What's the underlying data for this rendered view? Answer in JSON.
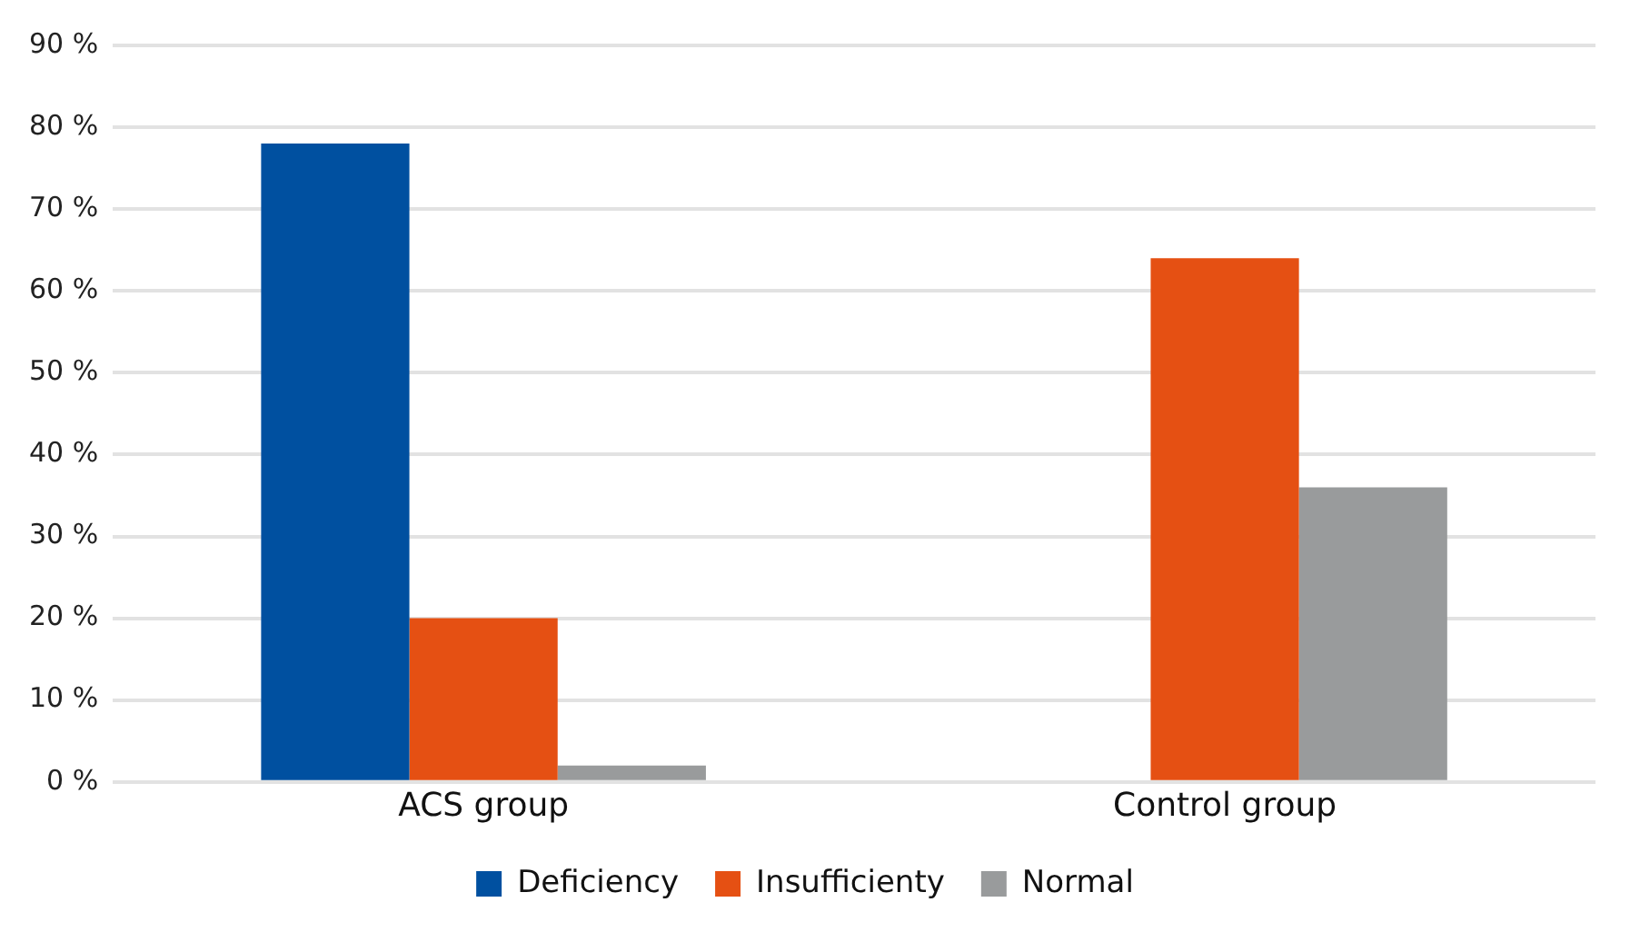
{
  "chart_data": {
    "type": "bar",
    "categories": [
      "ACS group",
      "Control group"
    ],
    "series": [
      {
        "name": "Deficiency",
        "color": "#0050a0",
        "values": [
          78,
          0
        ]
      },
      {
        "name": "Insufficienty",
        "color": "#e55013",
        "values": [
          20,
          64
        ]
      },
      {
        "name": "Normal",
        "color": "#999b9c",
        "values": [
          2,
          36
        ]
      }
    ],
    "ylim": [
      0,
      90
    ],
    "yticks": [
      {
        "value": 0,
        "label": "0 %"
      },
      {
        "value": 10,
        "label": "10 %"
      },
      {
        "value": 20,
        "label": "20 %"
      },
      {
        "value": 30,
        "label": "30 %"
      },
      {
        "value": 40,
        "label": "40 %"
      },
      {
        "value": 50,
        "label": "50 %"
      },
      {
        "value": 60,
        "label": "60 %"
      },
      {
        "value": 70,
        "label": "70 %"
      },
      {
        "value": 80,
        "label": "80 %"
      },
      {
        "value": 90,
        "label": "90 %"
      }
    ],
    "grid": "y",
    "legend": "bottom"
  }
}
